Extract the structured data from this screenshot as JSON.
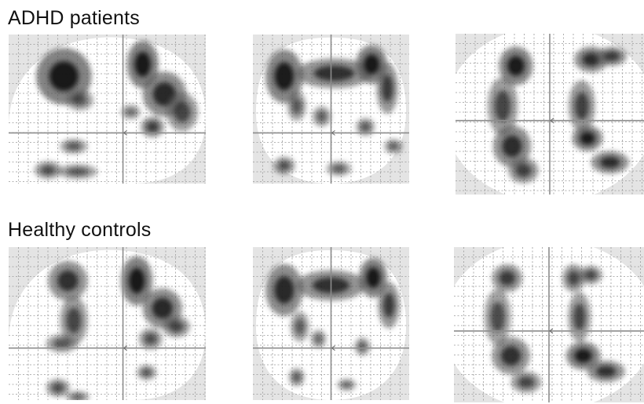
{
  "figure": {
    "groups": [
      {
        "label": "ADHD patients",
        "panels": [
          {
            "id": "sagittal",
            "blobs": [
              [
                0.28,
                0.28,
                0.14,
                0.19,
                1.0
              ],
              [
                0.36,
                0.44,
                0.07,
                0.07,
                0.5
              ],
              [
                0.68,
                0.2,
                0.08,
                0.16,
                1.0
              ],
              [
                0.79,
                0.4,
                0.11,
                0.15,
                0.85
              ],
              [
                0.88,
                0.52,
                0.08,
                0.13,
                0.6
              ],
              [
                0.73,
                0.62,
                0.06,
                0.07,
                0.7
              ],
              [
                0.33,
                0.75,
                0.07,
                0.05,
                0.5
              ],
              [
                0.2,
                0.91,
                0.07,
                0.06,
                0.55
              ],
              [
                0.35,
                0.92,
                0.1,
                0.05,
                0.5
              ],
              [
                0.62,
                0.52,
                0.05,
                0.05,
                0.35
              ]
            ]
          },
          {
            "id": "coronal",
            "blobs": [
              [
                0.2,
                0.28,
                0.12,
                0.18,
                0.95
              ],
              [
                0.52,
                0.26,
                0.24,
                0.1,
                0.75
              ],
              [
                0.76,
                0.2,
                0.1,
                0.13,
                1.0
              ],
              [
                0.86,
                0.36,
                0.07,
                0.17,
                0.7
              ],
              [
                0.28,
                0.48,
                0.06,
                0.1,
                0.5
              ],
              [
                0.44,
                0.55,
                0.06,
                0.07,
                0.45
              ],
              [
                0.72,
                0.62,
                0.06,
                0.06,
                0.5
              ],
              [
                0.2,
                0.88,
                0.07,
                0.06,
                0.55
              ],
              [
                0.55,
                0.9,
                0.08,
                0.05,
                0.45
              ],
              [
                0.9,
                0.75,
                0.06,
                0.05,
                0.45
              ]
            ]
          },
          {
            "id": "axial",
            "blobs": [
              [
                0.32,
                0.2,
                0.09,
                0.12,
                0.95
              ],
              [
                0.25,
                0.45,
                0.08,
                0.18,
                0.6
              ],
              [
                0.3,
                0.7,
                0.1,
                0.13,
                0.8
              ],
              [
                0.36,
                0.85,
                0.08,
                0.08,
                0.65
              ],
              [
                0.72,
                0.16,
                0.09,
                0.08,
                0.8
              ],
              [
                0.83,
                0.14,
                0.08,
                0.06,
                0.7
              ],
              [
                0.67,
                0.45,
                0.07,
                0.16,
                0.65
              ],
              [
                0.7,
                0.65,
                0.08,
                0.08,
                0.95
              ],
              [
                0.82,
                0.8,
                0.1,
                0.07,
                0.8
              ]
            ]
          }
        ]
      },
      {
        "label": "Healthy controls",
        "panels": [
          {
            "id": "sagittal",
            "blobs": [
              [
                0.3,
                0.22,
                0.1,
                0.13,
                0.75
              ],
              [
                0.33,
                0.48,
                0.07,
                0.16,
                0.6
              ],
              [
                0.27,
                0.63,
                0.08,
                0.06,
                0.5
              ],
              [
                0.65,
                0.22,
                0.08,
                0.16,
                1.0
              ],
              [
                0.78,
                0.4,
                0.1,
                0.13,
                0.85
              ],
              [
                0.85,
                0.52,
                0.07,
                0.07,
                0.6
              ],
              [
                0.72,
                0.6,
                0.06,
                0.07,
                0.55
              ],
              [
                0.7,
                0.82,
                0.05,
                0.05,
                0.5
              ],
              [
                0.25,
                0.92,
                0.06,
                0.06,
                0.55
              ],
              [
                0.35,
                0.98,
                0.06,
                0.04,
                0.4
              ]
            ]
          },
          {
            "id": "coronal",
            "blobs": [
              [
                0.2,
                0.28,
                0.12,
                0.17,
                0.85
              ],
              [
                0.5,
                0.25,
                0.22,
                0.1,
                0.75
              ],
              [
                0.77,
                0.2,
                0.09,
                0.13,
                1.0
              ],
              [
                0.87,
                0.38,
                0.07,
                0.15,
                0.7
              ],
              [
                0.3,
                0.52,
                0.06,
                0.1,
                0.45
              ],
              [
                0.42,
                0.6,
                0.05,
                0.06,
                0.4
              ],
              [
                0.7,
                0.65,
                0.05,
                0.06,
                0.45
              ],
              [
                0.28,
                0.85,
                0.05,
                0.06,
                0.5
              ],
              [
                0.6,
                0.9,
                0.06,
                0.04,
                0.4
              ]
            ]
          },
          {
            "id": "axial",
            "blobs": [
              [
                0.28,
                0.2,
                0.08,
                0.09,
                0.7
              ],
              [
                0.23,
                0.45,
                0.07,
                0.18,
                0.55
              ],
              [
                0.3,
                0.7,
                0.1,
                0.12,
                0.75
              ],
              [
                0.38,
                0.87,
                0.08,
                0.07,
                0.6
              ],
              [
                0.63,
                0.2,
                0.06,
                0.09,
                0.6
              ],
              [
                0.72,
                0.18,
                0.06,
                0.06,
                0.6
              ],
              [
                0.66,
                0.45,
                0.06,
                0.16,
                0.6
              ],
              [
                0.68,
                0.7,
                0.09,
                0.09,
                0.95
              ],
              [
                0.8,
                0.8,
                0.1,
                0.07,
                0.75
              ]
            ]
          }
        ]
      }
    ]
  }
}
